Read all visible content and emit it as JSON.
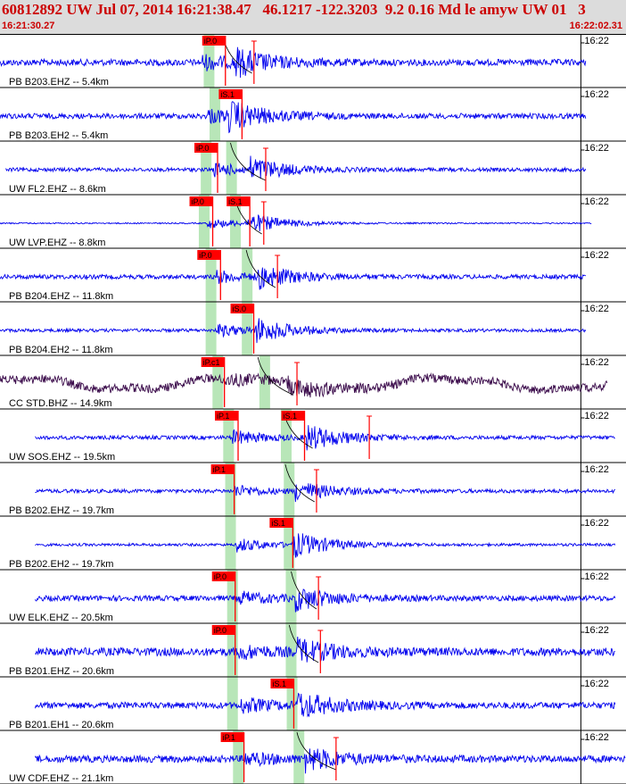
{
  "header": {
    "title": "60812892 UW Jul 07, 2014 16:21:38.47   46.1217 -122.3203  9.2 0.16 Md le amyw UW 01   3",
    "start_time": "16:21:30.27",
    "end_time": "16:22:02.31"
  },
  "colors": {
    "trace": "#0000ee",
    "trace_alt": "#3a0a4a",
    "pick": "#ff0000",
    "band": "#b8e6b8",
    "grid": "#000000",
    "header_bg": "#dcdcdc",
    "title": "#cc0000"
  },
  "chart_data": {
    "type": "line",
    "x_units": "seconds after 16:21:30.27",
    "xlim": [
      0,
      32.04
    ],
    "time_tick_label": "16:22",
    "time_tick_x": 29.73,
    "traces": [
      {
        "label": "PB B203.EHZ -- 5.4km",
        "color": "#0000ee",
        "data_start": 0.0,
        "data_end": 30.0,
        "noise": 0.12,
        "p": 10.35,
        "s": 12.0,
        "amp": 0.45,
        "end_mark": 13.0,
        "picks": [
          {
            "label": "iP.0",
            "t": 10.35
          }
        ],
        "bands": [
          10.7
        ],
        "curve": [
          11.4,
          12.9
        ]
      },
      {
        "label": "PB B203.EH2 -- 5.4km",
        "color": "#0000ee",
        "data_start": 0.0,
        "data_end": 30.0,
        "noise": 0.1,
        "p": 10.6,
        "s": 11.7,
        "amp": 0.45,
        "picks": [
          {
            "label": "iS.1",
            "t": 11.2
          }
        ],
        "bands": [
          11.0
        ],
        "curve": []
      },
      {
        "label": "UW FL2.EHZ -- 8.6km",
        "color": "#0000ee",
        "data_start": 0.3,
        "data_end": 30.0,
        "noise": 0.07,
        "p": 10.95,
        "s": 12.8,
        "amp": 0.4,
        "end_mark": 13.6,
        "picks": [
          {
            "label": "iP.0",
            "t": 9.95
          }
        ],
        "bands": [
          10.55,
          11.85
        ],
        "curve": [
          11.8,
          13.6
        ]
      },
      {
        "label": "UW LVP.EHZ -- 8.8km",
        "color": "#0000ee",
        "data_start": 0.0,
        "data_end": 30.3,
        "noise": 0.025,
        "p": 10.6,
        "s": 12.7,
        "amp": 0.35,
        "end_mark": 13.5,
        "picks": [
          {
            "label": "iP.0",
            "t": 9.7
          },
          {
            "label": "iS.1",
            "t": 11.6
          }
        ],
        "bands": [
          10.45,
          12.05
        ],
        "curve": [
          12.0,
          13.4
        ]
      },
      {
        "label": "PB B204.EHZ -- 11.8km",
        "color": "#0000ee",
        "data_start": 0.0,
        "data_end": 30.0,
        "noise": 0.08,
        "p": 11.0,
        "s": 13.2,
        "amp": 0.4,
        "end_mark": 14.2,
        "picks": [
          {
            "label": "iP.0",
            "t": 10.1
          }
        ],
        "bands": [
          10.8,
          12.65
        ],
        "curve": [
          12.6,
          14.1
        ]
      },
      {
        "label": "PB B204.EH2 -- 11.8km",
        "color": "#0000ee",
        "data_start": 0.0,
        "data_end": 30.0,
        "noise": 0.06,
        "p": 11.1,
        "s": 13.1,
        "amp": 0.4,
        "picks": [
          {
            "label": "iS.0",
            "t": 11.8
          }
        ],
        "bands": [
          10.8,
          12.65
        ],
        "curve": []
      },
      {
        "label": "CC STD.BHZ -- 14.9km",
        "color": "#3a0a4a",
        "data_start": 0.0,
        "data_end": 31.1,
        "noise": 0.16,
        "wave": 0.45,
        "p": 11.5,
        "s": 14.7,
        "amp": 0.25,
        "end_mark": 15.2,
        "picks": [
          {
            "label": "iP.c1",
            "t": 10.3
          }
        ],
        "bands": [
          11.15,
          13.55
        ],
        "curve": [
          13.2,
          15.0
        ]
      },
      {
        "label": "UW SOS.EHZ -- 19.5km",
        "color": "#0000ee",
        "data_start": 1.8,
        "data_end": 31.5,
        "noise": 0.07,
        "p": 11.9,
        "s": 15.7,
        "amp": 0.45,
        "end_mark": 18.9,
        "picks": [
          {
            "label": "iP.1",
            "t": 11.0
          },
          {
            "label": "iS.1",
            "t": 14.4
          }
        ],
        "bands": [
          11.7,
          14.65
        ],
        "curve": [
          14.5,
          16.0
        ]
      },
      {
        "label": "PB B202.EHZ -- 19.7km",
        "color": "#0000ee",
        "data_start": 1.8,
        "data_end": 31.5,
        "noise": 0.07,
        "p": 12.0,
        "s": 15.1,
        "amp": 0.35,
        "end_mark": 16.2,
        "picks": [
          {
            "label": "iP.1",
            "t": 10.8
          }
        ],
        "bands": [
          11.8,
          14.8
        ],
        "curve": [
          14.6,
          16.1
        ]
      },
      {
        "label": "PB B202.EH2 -- 19.7km",
        "color": "#0000ee",
        "data_start": 1.8,
        "data_end": 31.5,
        "noise": 0.05,
        "p": 12.1,
        "s": 15.0,
        "amp": 0.45,
        "picks": [
          {
            "label": "iS.1",
            "t": 13.8
          }
        ],
        "bands": [
          11.8,
          14.8
        ],
        "curve": []
      },
      {
        "label": "UW ELK.EHZ -- 20.5km",
        "color": "#0000ee",
        "data_start": 1.8,
        "data_end": 31.5,
        "noise": 0.1,
        "p": 12.2,
        "s": 15.1,
        "amp": 0.4,
        "end_mark": 16.3,
        "picks": [
          {
            "label": "iP.0",
            "t": 10.85
          }
        ],
        "bands": [
          11.9,
          14.9
        ],
        "curve": [
          14.9,
          16.2
        ]
      },
      {
        "label": "PB B201.EHZ -- 20.6km",
        "color": "#0000ee",
        "data_start": 1.8,
        "data_end": 31.5,
        "noise": 0.15,
        "p": 12.2,
        "s": 15.2,
        "amp": 0.4,
        "end_mark": 16.4,
        "picks": [
          {
            "label": "iP.0",
            "t": 10.85
          }
        ],
        "bands": [
          11.9,
          14.9
        ],
        "curve": [
          14.8,
          16.3
        ]
      },
      {
        "label": "PB B201.EH1 -- 20.6km",
        "color": "#0000ee",
        "data_start": 1.8,
        "data_end": 31.5,
        "noise": 0.12,
        "p": 12.3,
        "s": 15.2,
        "amp": 0.45,
        "picks": [
          {
            "label": "iS.1",
            "t": 13.85
          }
        ],
        "bands": [
          11.9,
          14.95
        ],
        "curve": []
      },
      {
        "label": "UW CDF.EHZ -- 21.1km",
        "color": "#0000ee",
        "data_start": 1.8,
        "data_end": 32.0,
        "noise": 0.13,
        "p": 12.5,
        "s": 15.6,
        "amp": 0.4,
        "end_mark": 17.2,
        "picks": [
          {
            "label": "iP.1",
            "t": 11.3
          }
        ],
        "bands": [
          12.2,
          15.3
        ],
        "curve": [
          15.2,
          17.2
        ]
      }
    ]
  }
}
